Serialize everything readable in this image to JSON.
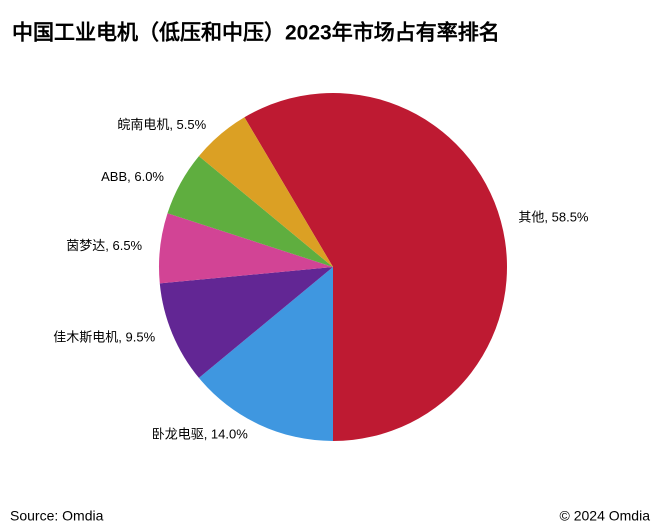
{
  "chart_data": {
    "type": "pie",
    "title": "中国工业电机（低压和中压）2023年市场占有率排名",
    "values": [
      58.5,
      14.0,
      9.5,
      6.5,
      6.0,
      5.5
    ],
    "value_labels": [
      "其他, 58.5%",
      "卧龙电驱, 14.0%",
      "佳木斯电机, 9.5%",
      "茵梦达, 6.5%",
      "ABB, 6.0%",
      "皖南电机, 5.5%"
    ],
    "colors": [
      "#be1a32",
      "#3f97e0",
      "#622694",
      "#d24495",
      "#5fae3f",
      "#dba024"
    ],
    "source": "Source: Omdia",
    "copyright": "© 2024 Omdia"
  }
}
